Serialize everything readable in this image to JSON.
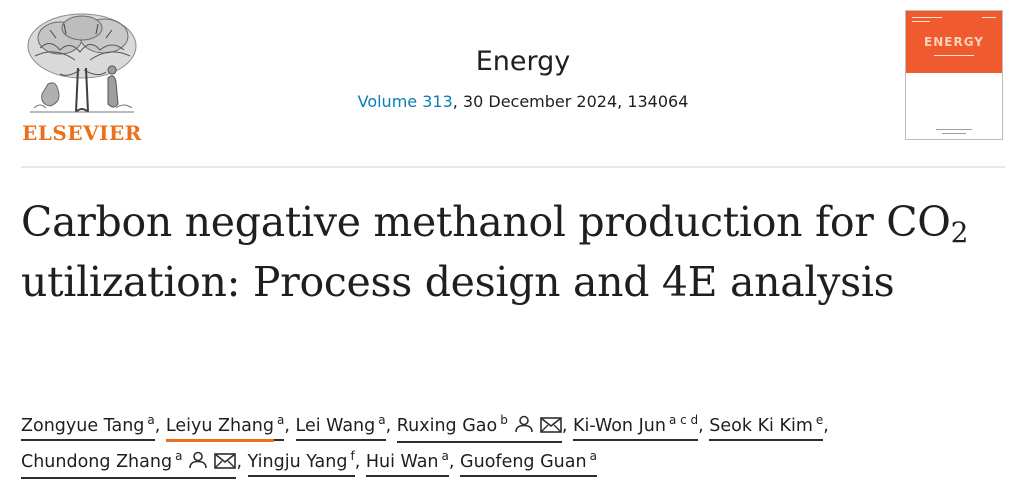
{
  "publisher": {
    "name": "ELSEVIER"
  },
  "journal": {
    "title": "Energy",
    "volume_label": "Volume 313",
    "date_article": ", 30 December 2024, 134064"
  },
  "cover": {
    "title": "ENERGY"
  },
  "article": {
    "title_part1": "Carbon negative methanol production for CO",
    "title_sub": "2",
    "title_part2": " utilization: Process design and 4E analysis"
  },
  "authors": [
    {
      "name": "Zongyue Tang",
      "aff": "a",
      "icons": []
    },
    {
      "name": "Leiyu Zhang",
      "aff": "a",
      "icons": []
    },
    {
      "name": "Lei Wang",
      "aff": "a",
      "icons": []
    },
    {
      "name": "Ruxing Gao",
      "aff": "b",
      "icons": [
        "person-icon",
        "mail-icon"
      ]
    },
    {
      "name": "Ki-Won Jun",
      "aff": "a c d",
      "icons": []
    },
    {
      "name": "Seok Ki Kim",
      "aff": "e",
      "icons": []
    },
    {
      "name": "Chundong Zhang",
      "aff": "a",
      "icons": [
        "person-icon",
        "mail-icon"
      ]
    },
    {
      "name": "Yingju Yang",
      "aff": "f",
      "icons": []
    },
    {
      "name": "Hui Wan",
      "aff": "a",
      "icons": []
    },
    {
      "name": "Guofeng Guan",
      "aff": "a",
      "icons": []
    }
  ],
  "colors": {
    "brand_orange": "#e9711c",
    "link_blue": "#0c7dbb",
    "cover_orange": "#ef5a2f",
    "text": "#1f1f1f"
  },
  "separator": ","
}
